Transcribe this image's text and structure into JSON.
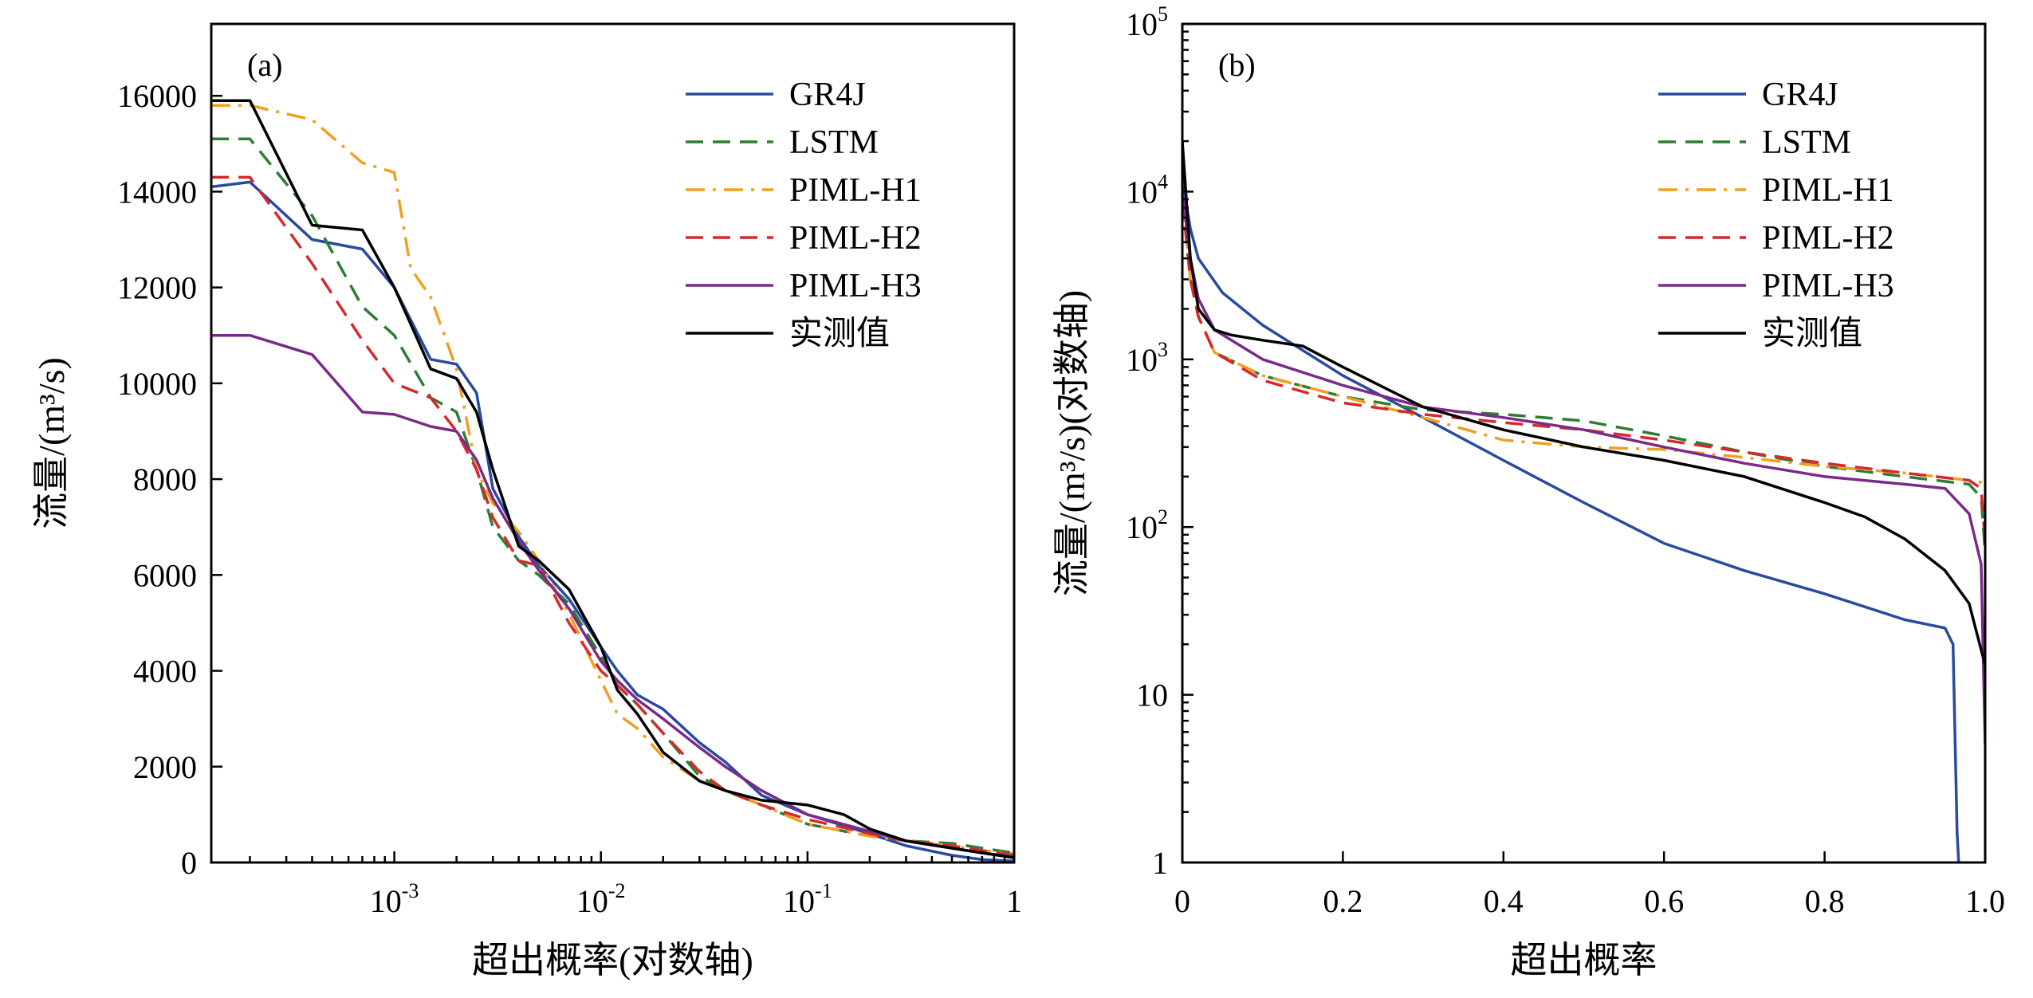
{
  "chart_data": [
    {
      "type": "line",
      "panel_label": "(a)",
      "xlabel": "超出概率(对数轴)",
      "ylabel": "流量/(m³/s)",
      "xscale": "log",
      "xlim": [
        0.00013,
        1
      ],
      "ylim": [
        0,
        17500
      ],
      "x_ticks": [
        {
          "value": 0.001,
          "base": "10",
          "exp": "-3"
        },
        {
          "value": 0.01,
          "base": "10",
          "exp": "-2"
        },
        {
          "value": 0.1,
          "base": "10",
          "exp": "-1"
        },
        {
          "value": 1,
          "base": "1",
          "exp": ""
        }
      ],
      "y_ticks": [
        0,
        2000,
        4000,
        6000,
        8000,
        10000,
        12000,
        14000,
        16000
      ],
      "legend": "top-right",
      "series": [
        {
          "name": "GR4J",
          "color": "#2a4aa0",
          "dash": "solid",
          "x": [
            0.00013,
            0.0002,
            0.0004,
            0.0007,
            0.001,
            0.0015,
            0.002,
            0.0025,
            0.003,
            0.004,
            0.005,
            0.007,
            0.01,
            0.012,
            0.015,
            0.02,
            0.03,
            0.04,
            0.06,
            0.1,
            0.2,
            0.3,
            0.5,
            0.7,
            1
          ],
          "y": [
            14100,
            14200,
            13000,
            12800,
            12000,
            10500,
            10400,
            9800,
            7800,
            6800,
            6200,
            5500,
            4500,
            4000,
            3500,
            3200,
            2500,
            2100,
            1400,
            1000,
            600,
            350,
            150,
            60,
            30
          ]
        },
        {
          "name": "LSTM",
          "color": "#2e7d32",
          "dash": "dashed",
          "x": [
            0.00013,
            0.0002,
            0.0004,
            0.0007,
            0.001,
            0.0015,
            0.002,
            0.0025,
            0.003,
            0.004,
            0.005,
            0.007,
            0.01,
            0.012,
            0.015,
            0.02,
            0.03,
            0.04,
            0.06,
            0.1,
            0.2,
            0.3,
            0.5,
            0.7,
            1
          ],
          "y": [
            15100,
            15100,
            13500,
            11600,
            11000,
            9700,
            9400,
            8200,
            7000,
            6300,
            6000,
            5400,
            4300,
            3700,
            3300,
            2700,
            1800,
            1500,
            1200,
            800,
            550,
            450,
            400,
            300,
            200
          ]
        },
        {
          "name": "PIML-H1",
          "color": "#f0a020",
          "dash": "dashdot",
          "x": [
            0.00013,
            0.0002,
            0.0004,
            0.0007,
            0.001,
            0.0012,
            0.0015,
            0.002,
            0.0025,
            0.003,
            0.004,
            0.005,
            0.007,
            0.01,
            0.012,
            0.015,
            0.02,
            0.03,
            0.04,
            0.06,
            0.1,
            0.2,
            0.3,
            0.5,
            0.7,
            1
          ],
          "y": [
            15800,
            15800,
            15500,
            14600,
            14400,
            12400,
            11800,
            10300,
            8200,
            7500,
            6900,
            6300,
            5200,
            3800,
            3100,
            2800,
            2200,
            1700,
            1500,
            1200,
            800,
            550,
            450,
            350,
            250,
            180
          ]
        },
        {
          "name": "PIML-H2",
          "color": "#d62a2a",
          "dash": "dashed",
          "x": [
            0.00013,
            0.0002,
            0.0004,
            0.0007,
            0.001,
            0.0015,
            0.002,
            0.0025,
            0.003,
            0.004,
            0.005,
            0.007,
            0.01,
            0.012,
            0.015,
            0.02,
            0.03,
            0.04,
            0.06,
            0.1,
            0.2,
            0.3,
            0.5,
            0.7,
            1
          ],
          "y": [
            14300,
            14300,
            12500,
            10900,
            10000,
            9700,
            9000,
            8200,
            7200,
            6300,
            6200,
            5000,
            4000,
            3700,
            3300,
            2700,
            1900,
            1500,
            1200,
            900,
            600,
            450,
            350,
            250,
            150
          ]
        },
        {
          "name": "PIML-H3",
          "color": "#7b2a8a",
          "dash": "solid",
          "x": [
            0.00013,
            0.0002,
            0.0004,
            0.0007,
            0.001,
            0.0015,
            0.002,
            0.0025,
            0.003,
            0.004,
            0.005,
            0.007,
            0.01,
            0.012,
            0.015,
            0.02,
            0.03,
            0.04,
            0.06,
            0.1,
            0.2,
            0.3,
            0.5,
            0.7,
            1
          ],
          "y": [
            11000,
            11000,
            10600,
            9400,
            9350,
            9100,
            9000,
            8400,
            7600,
            6700,
            6100,
            5300,
            4200,
            3800,
            3400,
            3000,
            2400,
            2000,
            1500,
            1000,
            650,
            450,
            300,
            200,
            120
          ]
        },
        {
          "name": "实测值",
          "color": "#000000",
          "dash": "solid",
          "x": [
            0.00013,
            0.0002,
            0.0004,
            0.0007,
            0.001,
            0.0015,
            0.002,
            0.0025,
            0.003,
            0.004,
            0.005,
            0.007,
            0.01,
            0.012,
            0.015,
            0.02,
            0.03,
            0.04,
            0.06,
            0.1,
            0.15,
            0.2,
            0.3,
            0.5,
            0.7,
            1
          ],
          "y": [
            15900,
            15900,
            13300,
            13200,
            12000,
            10300,
            10100,
            9400,
            8200,
            6600,
            6300,
            5700,
            4500,
            3600,
            3100,
            2300,
            1700,
            1500,
            1300,
            1200,
            1000,
            700,
            450,
            300,
            200,
            100
          ]
        }
      ]
    },
    {
      "type": "line",
      "panel_label": "(b)",
      "xlabel": "超出概率",
      "ylabel": "流量/(m³/s)(对数轴)",
      "yscale": "log",
      "xlim": [
        0,
        1
      ],
      "ylim": [
        1,
        100000
      ],
      "x_ticks": [
        0,
        0.2,
        0.4,
        0.6,
        0.8,
        1.0
      ],
      "x_tick_labels": [
        "0",
        "0.2",
        "0.4",
        "0.6",
        "0.8",
        "1.0"
      ],
      "y_ticks": [
        {
          "value": 1,
          "base": "1",
          "exp": ""
        },
        {
          "value": 10,
          "base": "10",
          "exp": ""
        },
        {
          "value": 100,
          "base": "10",
          "exp": "2"
        },
        {
          "value": 1000,
          "base": "10",
          "exp": "3"
        },
        {
          "value": 10000,
          "base": "10",
          "exp": "4"
        },
        {
          "value": 100000,
          "base": "10",
          "exp": "5"
        }
      ],
      "legend": "top-right",
      "series": [
        {
          "name": "GR4J",
          "color": "#2a4aa0",
          "dash": "solid",
          "x": [
            0.0,
            0.01,
            0.02,
            0.05,
            0.1,
            0.2,
            0.3,
            0.4,
            0.5,
            0.6,
            0.7,
            0.8,
            0.9,
            0.95,
            0.96,
            0.965,
            0.967
          ],
          "y": [
            12000,
            6000,
            4000,
            2500,
            1600,
            800,
            450,
            250,
            140,
            80,
            55,
            40,
            28,
            25,
            20,
            1.5,
            1
          ]
        },
        {
          "name": "LSTM",
          "color": "#2e7d32",
          "dash": "dashed",
          "x": [
            0.0,
            0.01,
            0.02,
            0.04,
            0.1,
            0.2,
            0.3,
            0.4,
            0.5,
            0.6,
            0.7,
            0.8,
            0.9,
            0.98,
            0.995,
            1.0
          ],
          "y": [
            9000,
            3000,
            1800,
            1100,
            800,
            600,
            500,
            470,
            430,
            350,
            280,
            230,
            200,
            180,
            150,
            70
          ]
        },
        {
          "name": "PIML-H1",
          "color": "#f0a020",
          "dash": "dashdot",
          "x": [
            0.0,
            0.01,
            0.02,
            0.04,
            0.1,
            0.2,
            0.3,
            0.4,
            0.5,
            0.6,
            0.7,
            0.8,
            0.9,
            0.98,
            0.995,
            1.0
          ],
          "y": [
            10000,
            3000,
            1800,
            1100,
            800,
            600,
            450,
            330,
            300,
            290,
            260,
            230,
            210,
            190,
            185,
            180
          ]
        },
        {
          "name": "PIML-H2",
          "color": "#d62a2a",
          "dash": "dashed",
          "x": [
            0.0,
            0.01,
            0.02,
            0.04,
            0.1,
            0.2,
            0.3,
            0.4,
            0.5,
            0.6,
            0.7,
            0.8,
            0.9,
            0.98,
            0.995,
            1.0
          ],
          "y": [
            9000,
            3000,
            1800,
            1100,
            750,
            550,
            470,
            420,
            380,
            330,
            280,
            240,
            210,
            190,
            170,
            80
          ]
        },
        {
          "name": "PIML-H3",
          "color": "#7b2a8a",
          "dash": "solid",
          "x": [
            0.0,
            0.01,
            0.02,
            0.04,
            0.1,
            0.2,
            0.3,
            0.4,
            0.5,
            0.6,
            0.7,
            0.8,
            0.9,
            0.95,
            0.98,
            0.995,
            1.0
          ],
          "y": [
            10000,
            4000,
            2300,
            1500,
            1000,
            700,
            520,
            450,
            380,
            300,
            240,
            200,
            180,
            170,
            120,
            60,
            5
          ]
        },
        {
          "name": "实测值",
          "color": "#000000",
          "dash": "solid",
          "x": [
            0.0,
            0.01,
            0.02,
            0.04,
            0.06,
            0.1,
            0.15,
            0.2,
            0.3,
            0.4,
            0.5,
            0.6,
            0.7,
            0.8,
            0.85,
            0.9,
            0.95,
            0.98,
            1.0
          ],
          "y": [
            20000,
            4000,
            2000,
            1500,
            1400,
            1300,
            1200,
            900,
            520,
            380,
            300,
            250,
            200,
            140,
            115,
            85,
            55,
            35,
            15
          ]
        }
      ]
    }
  ]
}
